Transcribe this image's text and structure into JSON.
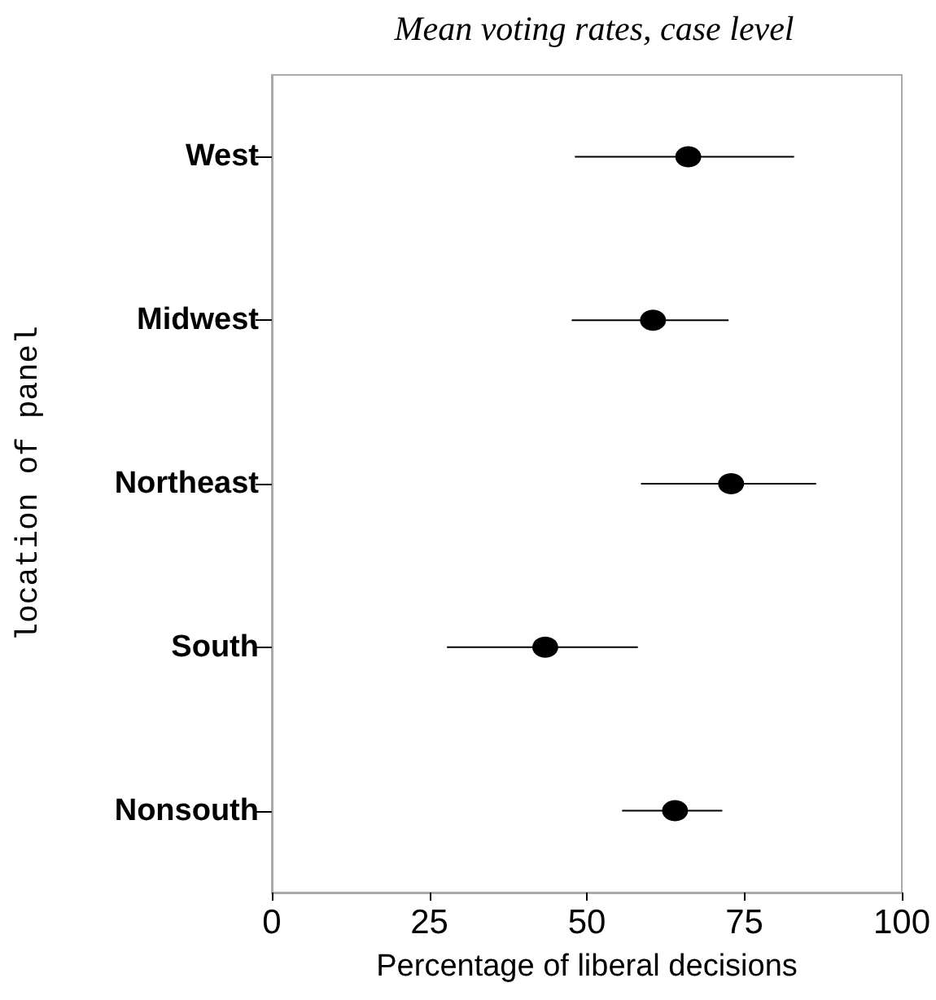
{
  "chart_data": {
    "type": "scatter",
    "orientation": "horizontal",
    "title": "Mean voting rates, case level",
    "xlabel": "Percentage of liberal decisions",
    "ylabel": "location of panel",
    "categories": [
      "West",
      "Midwest",
      "Northeast",
      "South",
      "Nonsouth"
    ],
    "values": [
      66.1,
      60.5,
      72.9,
      43.4,
      64.0
    ],
    "errors": [
      [
        48.1,
        82.9
      ],
      [
        47.6,
        72.5
      ],
      [
        58.6,
        86.4
      ],
      [
        27.8,
        58.1
      ],
      [
        55.6,
        71.5
      ]
    ],
    "color": "#000000",
    "marker": "circle",
    "xlim": [
      0,
      100
    ],
    "xticks": [
      0,
      25,
      50,
      75,
      100
    ],
    "grid": false
  }
}
